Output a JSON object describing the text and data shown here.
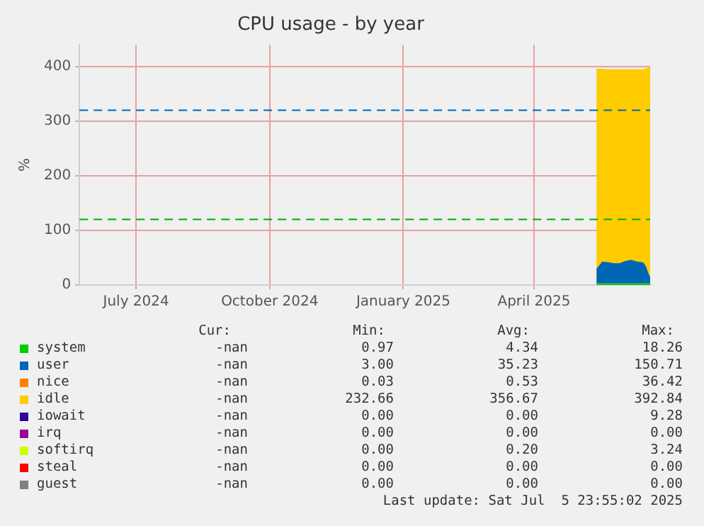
{
  "chart_data": {
    "type": "area",
    "title": "CPU usage - by year",
    "ylabel": "%",
    "stacked": true,
    "grid": true,
    "legend": "bottom",
    "x": [
      "2025-05-29",
      "2025-06-02",
      "2025-06-06",
      "2025-06-10",
      "2025-06-14",
      "2025-06-18",
      "2025-06-22",
      "2025-06-26",
      "2025-06-30",
      "2025-07-02",
      "2025-07-04",
      "2025-07-05"
    ],
    "xlim": [
      "2024-06-07",
      "2025-07-05"
    ],
    "xticks": [
      {
        "value": "2024-07-16",
        "label": "July 2024"
      },
      {
        "value": "2024-10-16",
        "label": "October 2024"
      },
      {
        "value": "2025-01-16",
        "label": "January 2025"
      },
      {
        "value": "2025-04-16",
        "label": "April 2025"
      }
    ],
    "ylim": [
      0,
      440
    ],
    "yticks": [
      0,
      100,
      200,
      300,
      400
    ],
    "series": [
      {
        "name": "system",
        "color": "#00cc00",
        "values": [
          3,
          3,
          3,
          3,
          3,
          3,
          3,
          3,
          3,
          3,
          3,
          3
        ]
      },
      {
        "name": "user",
        "color": "#0066b3",
        "values": [
          27,
          40,
          39,
          37,
          37,
          41,
          43,
          40,
          39,
          32,
          17,
          12
        ]
      },
      {
        "name": "nice",
        "color": "#ff8000",
        "values": [
          null,
          null,
          null,
          null,
          null,
          null,
          null,
          null,
          null,
          null,
          null,
          null
        ]
      },
      {
        "name": "idle",
        "color": "#ffcc00",
        "values": [
          366,
          353,
          353,
          355,
          355,
          351,
          349,
          352,
          353,
          362,
          378,
          384
        ]
      },
      {
        "name": "iowait",
        "color": "#330099",
        "values": [
          null,
          null,
          null,
          null,
          null,
          null,
          null,
          null,
          null,
          null,
          null,
          null
        ]
      },
      {
        "name": "irq",
        "color": "#990099",
        "values": [
          null,
          null,
          null,
          null,
          null,
          null,
          null,
          null,
          null,
          null,
          null,
          null
        ]
      },
      {
        "name": "softirq",
        "color": "#ccff00",
        "values": [
          null,
          null,
          null,
          null,
          null,
          null,
          null,
          null,
          null,
          null,
          null,
          null
        ]
      },
      {
        "name": "steal",
        "color": "#ff0000",
        "values": [
          null,
          null,
          null,
          null,
          null,
          null,
          null,
          null,
          null,
          null,
          null,
          null
        ]
      },
      {
        "name": "guest",
        "color": "#808080",
        "values": [
          null,
          null,
          null,
          null,
          null,
          null,
          null,
          null,
          null,
          null,
          null,
          null
        ]
      }
    ],
    "ref_lines": [
      {
        "axis": "y",
        "value": 320,
        "color": "#0066b3",
        "line_style": "dashed"
      },
      {
        "axis": "y",
        "value": 120,
        "color": "#00aa00",
        "line_style": "dashed"
      }
    ],
    "annotations": [
      "Cur:",
      "Min:",
      "Avg:",
      "Max:",
      "-nan",
      "0.97",
      "4.34",
      "18.26",
      "-nan",
      "3.00",
      "35.23",
      "150.71",
      "-nan",
      "0.03",
      "0.53",
      "36.42",
      "-nan",
      "232.66",
      "356.67",
      "392.84",
      "-nan",
      "0.00",
      "0.00",
      "9.28",
      "-nan",
      "0.00",
      "0.00",
      "0.00",
      "-nan",
      "0.00",
      "0.20",
      "3.24",
      "-nan",
      "0.00",
      "0.00",
      "0.00",
      "-nan",
      "0.00",
      "0.00",
      "0.00",
      "Last update: Sat Jul  5 23:55:02 2025"
    ]
  }
}
